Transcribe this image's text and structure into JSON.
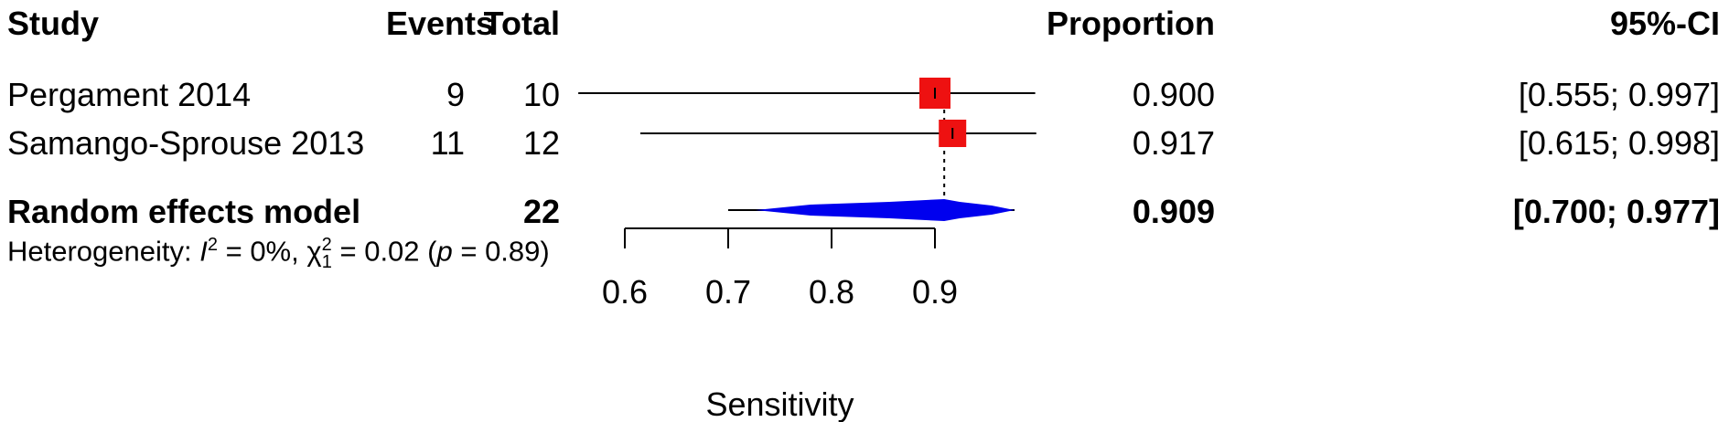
{
  "headers": {
    "study": "Study",
    "events": "Events",
    "total": "Total",
    "proportion": "Proportion",
    "ci": "95%-CI"
  },
  "studies": [
    {
      "name": "Pergament 2014",
      "events": "9",
      "total": "10",
      "proportion": "0.900",
      "ci": "[0.555; 0.997]"
    },
    {
      "name": "Samango-Sprouse 2013",
      "events": "11",
      "total": "12",
      "proportion": "0.917",
      "ci": "[0.615; 0.998]"
    }
  ],
  "pooled": {
    "label": "Random effects model",
    "total": "22",
    "proportion": "0.909",
    "ci": "[0.700; 0.977]"
  },
  "heterogeneity": {
    "prefix": "Heterogeneity: ",
    "i2_symbol": "I",
    "i2_sup": "2",
    "i2_value": " = 0%, ",
    "chi_symbol": "χ",
    "chi_sup": "2",
    "chi_sub": "1",
    "chi_value": " = 0.02 (",
    "p_symbol": "p",
    "p_value": " = 0.89)"
  },
  "chart_data": {
    "type": "forest",
    "xlabel": "Sensitivity",
    "xticks": [
      0.6,
      0.7,
      0.8,
      0.9
    ],
    "xtick_labels": [
      "0.6",
      "0.7",
      "0.8",
      "0.9"
    ],
    "xlim": [
      0.55,
      1.0
    ],
    "reference_line": 0.909,
    "studies": [
      {
        "name": "Pergament 2014",
        "estimate": 0.9,
        "lower": 0.555,
        "upper": 0.997
      },
      {
        "name": "Samango-Sprouse 2013",
        "estimate": 0.917,
        "lower": 0.615,
        "upper": 0.998
      }
    ],
    "pooled": {
      "estimate": 0.909,
      "lower": 0.7,
      "upper": 0.977
    },
    "colors": {
      "study_box": "#ee1111",
      "pooled_diamond": "#0000ee",
      "line": "#000000"
    }
  }
}
